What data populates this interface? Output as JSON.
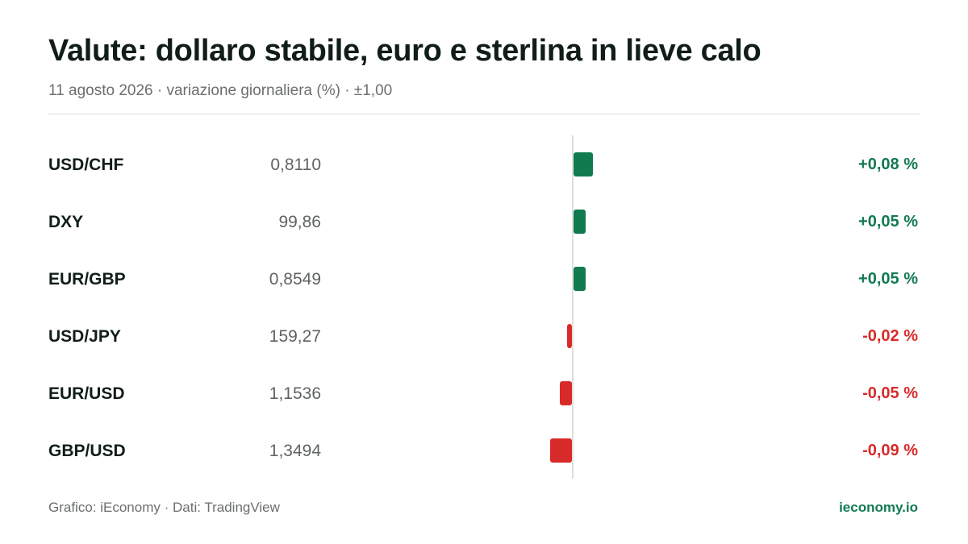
{
  "header": {
    "title": "Valute: dollaro stabile, euro e sterlina in lieve calo",
    "subtitle": "11 agosto 2026 · variazione giornaliera (%) · ±1,00"
  },
  "footer": {
    "source": "Grafico: iEconomy · Dati: TradingView",
    "brand": "ieconomy.io"
  },
  "colors": {
    "positive": "#117a4f",
    "negative": "#d92a2a"
  },
  "chart_data": {
    "type": "bar",
    "orientation": "horizontal",
    "title": "Valute: dollaro stabile, euro e sterlina in lieve calo",
    "subtitle": "11 agosto 2026 · variazione giornaliera (%) · ±1,00",
    "xlim": [
      -1,
      1
    ],
    "categories": [
      "USD/CHF",
      "DXY",
      "EUR/GBP",
      "USD/JPY",
      "EUR/USD",
      "GBP/USD"
    ],
    "prices": [
      "0,8110",
      "99,86",
      "0,8549",
      "159,27",
      "1,1536",
      "1,3494"
    ],
    "values": [
      0.08,
      0.05,
      0.05,
      -0.02,
      -0.05,
      -0.09
    ],
    "labels": [
      "+0,08 %",
      "+0,05 %",
      "+0,05 %",
      "-0,02 %",
      "-0,05 %",
      "-0,09 %"
    ]
  }
}
